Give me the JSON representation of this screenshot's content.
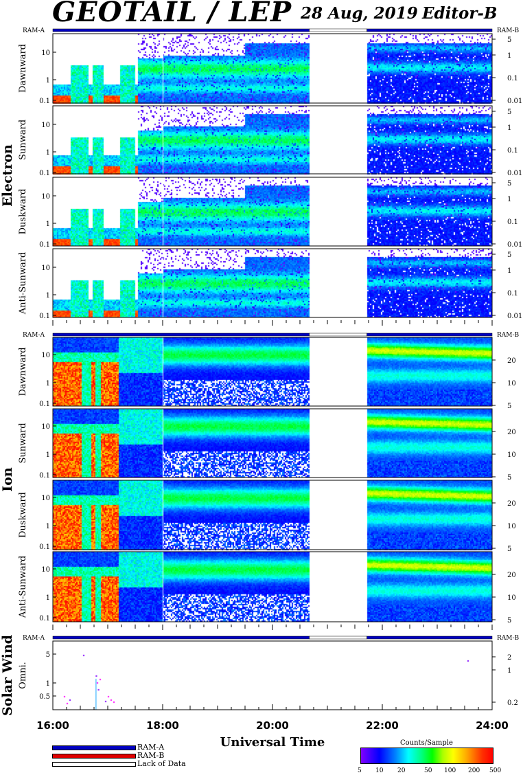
{
  "header": {
    "title": "GEOTAIL / LEP",
    "date": "28 Aug, 2019",
    "editor": "Editor-B"
  },
  "legend": {
    "ram_a": "RAM-A",
    "ram_b": "RAM-B",
    "lack_of_data": "Lack of Data",
    "colors": {
      "ram_a": "#0000c0",
      "ram_b": "#e00000",
      "lack_of_data": "#ffffff"
    }
  },
  "colorbar": {
    "title": "Counts/Sample",
    "ticks": [
      "5",
      "10",
      "20",
      "50",
      "100",
      "200",
      "500"
    ]
  },
  "chart_data": {
    "type": "heatmap",
    "xlabel": "Universal Time",
    "x_ticks": [
      "16:00",
      "18:00",
      "20:00",
      "22:00",
      "24:00"
    ],
    "x_range_hours": [
      16,
      24
    ],
    "data_gap_hours": [
      20.67,
      21.72
    ],
    "sections": [
      {
        "name": "Electron",
        "mode_left": "RAM-A",
        "mode_right": "RAM-B",
        "left_ticks": [
          "0.1",
          "1",
          "10"
        ],
        "right_ticks": [
          "0.01",
          "0.1",
          "1",
          "5"
        ],
        "panels": [
          "Dawnward",
          "Sunward",
          "Duskward",
          "Anti-Sunward"
        ]
      },
      {
        "name": "Ion",
        "mode_left": "RAM-A",
        "mode_right": "RAM-B",
        "left_ticks": [
          "0.1",
          "1",
          "10"
        ],
        "right_ticks": [
          "5",
          "10",
          "20"
        ],
        "panels": [
          "Dawnward",
          "Sunward",
          "Duskward",
          "Anti-Sunward"
        ]
      },
      {
        "name": "Solar Wind",
        "mode_left": "RAM-A",
        "mode_right": "RAM-B",
        "left_ticks": [
          "0.5",
          "1",
          "5"
        ],
        "right_ticks": [
          "0.2",
          "1",
          "2"
        ],
        "panels": [
          "Omni."
        ]
      }
    ]
  }
}
